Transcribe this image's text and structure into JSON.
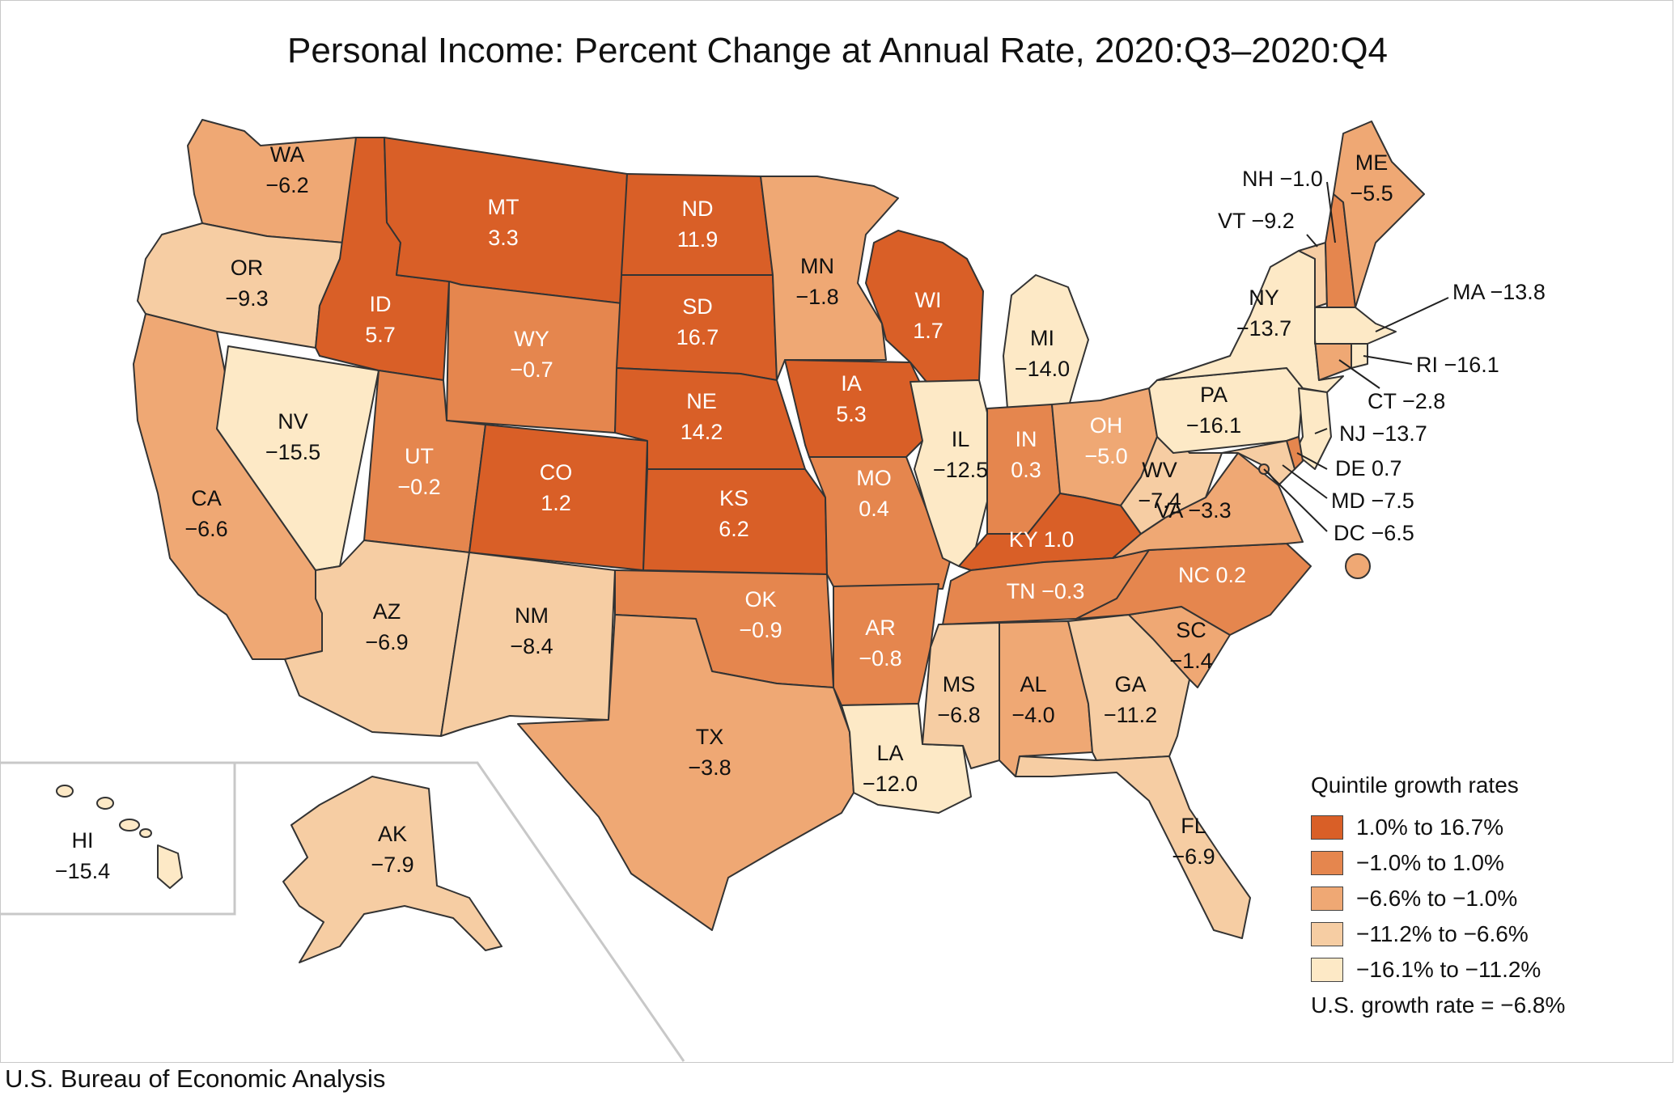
{
  "title": "Personal Income: Percent Change at Annual Rate, 2020:Q3–2020:Q4",
  "source": "U.S. Bureau of Economic Analysis",
  "colors": {
    "q1": "#d95f27",
    "q2": "#e5864e",
    "q3": "#efa874",
    "q4": "#f6cda3",
    "q5": "#fde9c6",
    "border": "#333333"
  },
  "legend": {
    "title": "Quintile growth rates",
    "items": [
      {
        "label": "1.0% to 16.7%",
        "color": "#d95f27"
      },
      {
        "label": "−1.0% to 1.0%",
        "color": "#e5864e"
      },
      {
        "label": "−6.6% to −1.0%",
        "color": "#efa874"
      },
      {
        "label": "−11.2% to −6.6%",
        "color": "#f6cda3"
      },
      {
        "label": "−16.1% to −11.2%",
        "color": "#fde9c6"
      }
    ],
    "us_rate": "U.S. growth rate = −6.8%"
  },
  "states": {
    "WA": {
      "abbr": "WA",
      "value": "−6.2"
    },
    "OR": {
      "abbr": "OR",
      "value": "−9.3"
    },
    "CA": {
      "abbr": "CA",
      "value": "−6.6"
    },
    "NV": {
      "abbr": "NV",
      "value": "−15.5"
    },
    "ID": {
      "abbr": "ID",
      "value": "5.7"
    },
    "MT": {
      "abbr": "MT",
      "value": "3.3"
    },
    "WY": {
      "abbr": "WY",
      "value": "−0.7"
    },
    "UT": {
      "abbr": "UT",
      "value": "−0.2"
    },
    "AZ": {
      "abbr": "AZ",
      "value": "−6.9"
    },
    "CO": {
      "abbr": "CO",
      "value": "1.2"
    },
    "NM": {
      "abbr": "NM",
      "value": "−8.4"
    },
    "ND": {
      "abbr": "ND",
      "value": "11.9"
    },
    "SD": {
      "abbr": "SD",
      "value": "16.7"
    },
    "NE": {
      "abbr": "NE",
      "value": "14.2"
    },
    "KS": {
      "abbr": "KS",
      "value": "6.2"
    },
    "OK": {
      "abbr": "OK",
      "value": "−0.9"
    },
    "TX": {
      "abbr": "TX",
      "value": "−3.8"
    },
    "MN": {
      "abbr": "MN",
      "value": "−1.8"
    },
    "IA": {
      "abbr": "IA",
      "value": "5.3"
    },
    "MO": {
      "abbr": "MO",
      "value": "0.4"
    },
    "AR": {
      "abbr": "AR",
      "value": "−0.8"
    },
    "LA": {
      "abbr": "LA",
      "value": "−12.0"
    },
    "WI": {
      "abbr": "WI",
      "value": "1.7"
    },
    "IL": {
      "abbr": "IL",
      "value": "−12.5"
    },
    "MI": {
      "abbr": "MI",
      "value": "−14.0"
    },
    "IN": {
      "abbr": "IN",
      "value": "0.3"
    },
    "OH": {
      "abbr": "OH",
      "value": "−5.0"
    },
    "KY": {
      "abbr": "KY",
      "value": "1.0"
    },
    "TN": {
      "abbr": "TN",
      "value": "−0.3"
    },
    "MS": {
      "abbr": "MS",
      "value": "−6.8"
    },
    "AL": {
      "abbr": "AL",
      "value": "−4.0"
    },
    "GA": {
      "abbr": "GA",
      "value": "−11.2"
    },
    "FL": {
      "abbr": "FL",
      "value": "−6.9"
    },
    "SC": {
      "abbr": "SC",
      "value": "−1.4"
    },
    "NC": {
      "abbr": "NC",
      "value": "0.2"
    },
    "VA": {
      "abbr": "VA",
      "value": "−3.3"
    },
    "WV": {
      "abbr": "WV",
      "value": "−7.4"
    },
    "PA": {
      "abbr": "PA",
      "value": "−16.1"
    },
    "NY": {
      "abbr": "NY",
      "value": "−13.7"
    },
    "ME": {
      "abbr": "ME",
      "value": "−5.5"
    },
    "VT": {
      "abbr": "VT",
      "value": "−9.2"
    },
    "NH": {
      "abbr": "NH",
      "value": "−1.0"
    },
    "MA": {
      "abbr": "MA",
      "value": "−13.8"
    },
    "RI": {
      "abbr": "RI",
      "value": "−16.1"
    },
    "CT": {
      "abbr": "CT",
      "value": "−2.8"
    },
    "NJ": {
      "abbr": "NJ",
      "value": "−13.7"
    },
    "DE": {
      "abbr": "DE",
      "value": "0.7"
    },
    "MD": {
      "abbr": "MD",
      "value": "−7.5"
    },
    "DC": {
      "abbr": "DC",
      "value": "−6.5"
    },
    "HI": {
      "abbr": "HI",
      "value": "−15.4"
    },
    "AK": {
      "abbr": "AK",
      "value": "−7.9"
    }
  }
}
